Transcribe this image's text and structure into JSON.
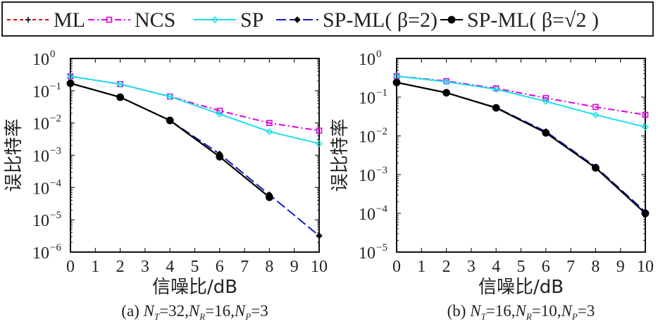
{
  "legend": {
    "entries": [
      {
        "name": "ML",
        "label": "ML",
        "color": "#e00000",
        "dash": "5,4",
        "marker": "plus",
        "marker_color": "#000000"
      },
      {
        "name": "NCS",
        "label": "NCS",
        "color": "#e000e0",
        "dash": "9,4,2,4",
        "marker": "square",
        "marker_color": "#e000e0"
      },
      {
        "name": "SP",
        "label": "SP",
        "color": "#18e0e8",
        "dash": "",
        "marker": "diamond",
        "marker_color": "#18e0e8"
      },
      {
        "name": "SP-ML(β=2)",
        "label": "SP-ML( β=2)",
        "color": "#1020c0",
        "dash": "14,5",
        "marker": "diamond-filled",
        "marker_color": "#000000"
      },
      {
        "name": "SP-ML(β=√2)",
        "label": "SP-ML( β=√2 )",
        "color": "#000000",
        "dash": "",
        "marker": "circle",
        "marker_color": "#000000"
      }
    ]
  },
  "chart_data": [
    {
      "type": "line",
      "title": "",
      "caption": "(a) N_T=32, N_R=16, N_P=3",
      "caption_parts": {
        "prefix": "(a) ",
        "NT": "32",
        "NR": "16",
        "NP": "3"
      },
      "xlabel": "信噪比/dB",
      "ylabel": "误比特率",
      "yscale": "log",
      "xlim": [
        0,
        10
      ],
      "ylim": [
        1e-06,
        1
      ],
      "xticks": [
        0,
        1,
        2,
        3,
        4,
        5,
        6,
        7,
        8,
        9,
        10
      ],
      "yticks_exp": [
        0,
        -1,
        -2,
        -3,
        -4,
        -5,
        -6
      ],
      "grid": false,
      "legend_position": "top (shared, above both plots)",
      "series": [
        {
          "name": "ML",
          "x": [
            0,
            2,
            4,
            6,
            8
          ],
          "y": [
            0.17,
            0.063,
            0.012,
            0.0009,
            5e-05
          ]
        },
        {
          "name": "NCS",
          "x": [
            0,
            2,
            4,
            6,
            8,
            10
          ],
          "y": [
            0.28,
            0.16,
            0.066,
            0.024,
            0.01,
            0.0058
          ]
        },
        {
          "name": "SP",
          "x": [
            0,
            2,
            4,
            6,
            8,
            10
          ],
          "y": [
            0.28,
            0.16,
            0.066,
            0.019,
            0.0054,
            0.0023
          ]
        },
        {
          "name": "SP-ML(β=2)",
          "x": [
            0,
            2,
            4,
            6,
            8,
            10
          ],
          "y": [
            0.17,
            0.063,
            0.012,
            0.0011,
            6e-05,
            3.2e-06
          ]
        },
        {
          "name": "SP-ML(β=√2)",
          "x": [
            0,
            2,
            4,
            6,
            8
          ],
          "y": [
            0.17,
            0.063,
            0.012,
            0.0009,
            5e-05
          ]
        }
      ]
    },
    {
      "type": "line",
      "title": "",
      "caption": "(b) N_T=16, N_R=10, N_P=3",
      "caption_parts": {
        "prefix": "(b) ",
        "NT": "16",
        "NR": "10",
        "NP": "3"
      },
      "xlabel": "信噪比/dB",
      "ylabel": "误比特率",
      "yscale": "log",
      "xlim": [
        0,
        10
      ],
      "ylim": [
        1e-05,
        1
      ],
      "xticks": [
        0,
        1,
        2,
        3,
        4,
        5,
        6,
        7,
        8,
        9,
        10
      ],
      "yticks_exp": [
        0,
        -1,
        -2,
        -3,
        -4,
        -5
      ],
      "grid": false,
      "legend_position": "top (shared, above both plots)",
      "series": [
        {
          "name": "ML",
          "x": [
            0,
            2,
            4,
            6,
            8,
            10
          ],
          "y": [
            0.24,
            0.13,
            0.053,
            0.012,
            0.0015,
            0.0001
          ]
        },
        {
          "name": "NCS",
          "x": [
            0,
            2,
            4,
            6,
            8,
            10
          ],
          "y": [
            0.35,
            0.26,
            0.17,
            0.095,
            0.056,
            0.035
          ]
        },
        {
          "name": "SP",
          "x": [
            0,
            2,
            4,
            6,
            8,
            10
          ],
          "y": [
            0.35,
            0.25,
            0.16,
            0.078,
            0.035,
            0.017
          ]
        },
        {
          "name": "SP-ML(β=2)",
          "x": [
            0,
            2,
            4,
            6,
            8,
            10
          ],
          "y": [
            0.24,
            0.13,
            0.054,
            0.013,
            0.0016,
            0.00011
          ]
        },
        {
          "name": "SP-ML(β=√2)",
          "x": [
            0,
            2,
            4,
            6,
            8,
            10
          ],
          "y": [
            0.24,
            0.13,
            0.053,
            0.012,
            0.0015,
            0.0001
          ]
        }
      ]
    }
  ]
}
